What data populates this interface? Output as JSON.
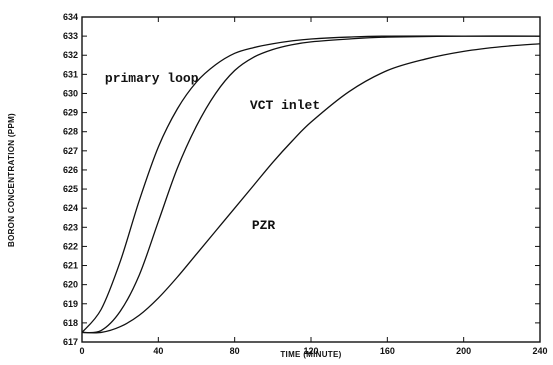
{
  "chart_data": {
    "type": "line",
    "xlabel": "TIME (MINUTE)",
    "ylabel": "BORON CONCENTRATION (PPM)",
    "xlim": [
      0,
      240
    ],
    "ylim": [
      617,
      634
    ],
    "xticks": [
      0,
      40,
      80,
      120,
      160,
      200,
      240
    ],
    "yticks": [
      617,
      618,
      619,
      620,
      621,
      622,
      623,
      624,
      625,
      626,
      627,
      628,
      629,
      630,
      631,
      632,
      633,
      634
    ],
    "grid": false,
    "series": [
      {
        "name": "primary loop",
        "x": [
          0,
          10,
          20,
          30,
          40,
          50,
          60,
          70,
          80,
          90,
          100,
          110,
          120,
          140,
          160,
          200,
          240
        ],
        "y": [
          617.5,
          618.7,
          621.2,
          624.4,
          627.2,
          629.2,
          630.6,
          631.5,
          632.1,
          632.4,
          632.6,
          632.75,
          632.85,
          632.95,
          633.0,
          633.0,
          633.0
        ]
      },
      {
        "name": "VCT inlet",
        "x": [
          0,
          10,
          20,
          30,
          40,
          50,
          60,
          70,
          80,
          90,
          100,
          110,
          120,
          140,
          160,
          200,
          240
        ],
        "y": [
          617.5,
          617.6,
          618.6,
          620.5,
          623.3,
          626.1,
          628.3,
          630.0,
          631.2,
          631.9,
          632.3,
          632.55,
          632.7,
          632.85,
          632.95,
          633.0,
          633.0
        ]
      },
      {
        "name": "PZR",
        "x": [
          0,
          10,
          20,
          30,
          40,
          50,
          60,
          70,
          80,
          90,
          100,
          110,
          120,
          140,
          160,
          180,
          200,
          220,
          240
        ],
        "y": [
          617.5,
          617.5,
          617.8,
          618.4,
          619.3,
          620.4,
          621.6,
          622.8,
          624.0,
          625.2,
          626.4,
          627.5,
          628.5,
          630.1,
          631.2,
          631.8,
          632.2,
          632.45,
          632.6
        ]
      }
    ],
    "annotations": [
      {
        "text": "primary loop",
        "x": 12,
        "y": 630.6
      },
      {
        "text": "VCT inlet",
        "x": 88,
        "y": 629.2
      },
      {
        "text": "PZR",
        "x": 89,
        "y": 622.9
      }
    ]
  }
}
